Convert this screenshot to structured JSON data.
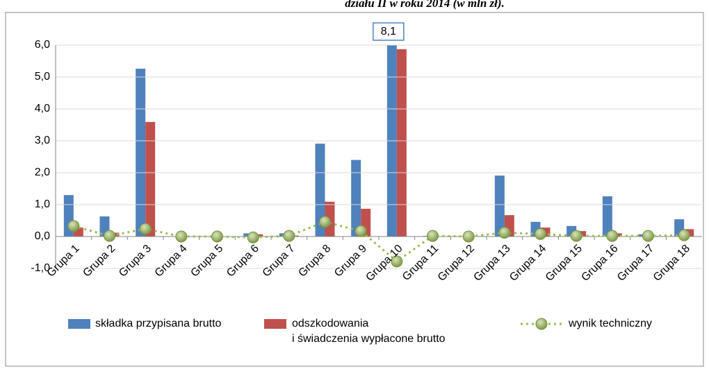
{
  "chart_data": {
    "type": "bar",
    "title": "działu II w roku 2014 (w mln zł).",
    "categories": [
      "Grupa 1",
      "Grupa 2",
      "Grupa 3",
      "Grupa 4",
      "Grupa 5",
      "Grupa 6",
      "Grupa 7",
      "Grupa 8",
      "Grupa 9",
      "Grupa 10",
      "Grupa 11",
      "Grupa 12",
      "Grupa 13",
      "Grupa 14",
      "Grupa 15",
      "Grupa 16",
      "Grupa 17",
      "Grupa 18"
    ],
    "series": [
      {
        "name": "składka przypisana brutto",
        "color": "#4f81bd",
        "type": "bar",
        "values": [
          1.3,
          0.63,
          5.26,
          0.01,
          0,
          0.1,
          0.1,
          2.91,
          2.4,
          8.1,
          0.02,
          0,
          1.91,
          0.46,
          0.33,
          1.26,
          0.07,
          0.54
        ],
        "value_labels": [
          null,
          null,
          null,
          null,
          null,
          null,
          null,
          null,
          null,
          "8,1",
          null,
          null,
          null,
          null,
          null,
          null,
          null,
          null
        ]
      },
      {
        "name": "odszkodowania\ni świadczenia wypłacone brutto",
        "color": "#c0504d",
        "type": "bar",
        "values": [
          0.28,
          0.12,
          3.59,
          0,
          0,
          0.07,
          0.03,
          1.09,
          0.87,
          5.87,
          0,
          0,
          0.67,
          0.28,
          0.17,
          0.1,
          0.02,
          0.23
        ]
      },
      {
        "name": "wynik techniczny",
        "color": "#9bbb59",
        "type": "line",
        "values": [
          0.33,
          0.02,
          0.24,
          0,
          0,
          -0.03,
          0.02,
          0.46,
          0.17,
          -0.78,
          0.02,
          0,
          0.12,
          0.08,
          0.02,
          0.02,
          0.02,
          0.04
        ]
      }
    ],
    "ylim": [
      -1,
      6
    ],
    "yticks": [
      {
        "value": -1,
        "label": "-1,0"
      },
      {
        "value": 0,
        "label": "0,0"
      },
      {
        "value": 1,
        "label": "1,0"
      },
      {
        "value": 2,
        "label": "2,0"
      },
      {
        "value": 3,
        "label": "3,0"
      },
      {
        "value": 4,
        "label": "4,0"
      },
      {
        "value": 5,
        "label": "5,0"
      },
      {
        "value": 6,
        "label": "6,0"
      }
    ],
    "grid": true
  }
}
